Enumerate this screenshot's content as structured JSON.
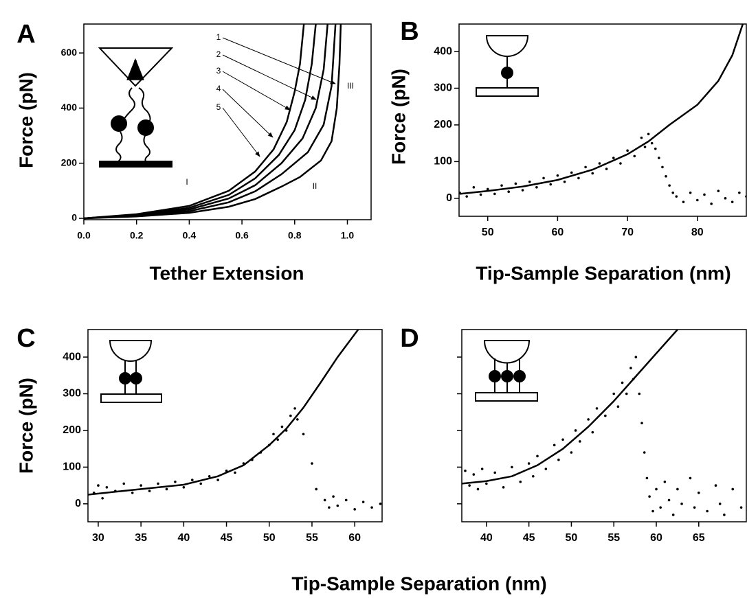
{
  "xlabel": "Tip-Sample Separation (nm)",
  "chart_data": [
    {
      "type": "line",
      "panel_label": "A",
      "ylabel": "Force (pN)",
      "xlabel": "Tether Extension",
      "xlim": [
        0,
        1.09
      ],
      "ylim": [
        -5,
        705
      ],
      "xticks": [
        {
          "value": 0,
          "label": "0.0"
        },
        0.2,
        0.4,
        0.6,
        0.8,
        {
          "value": 1,
          "label": "1.0"
        }
      ],
      "yticks": [
        0,
        200,
        400,
        600
      ],
      "annotations": [
        "1",
        "2",
        "3",
        "4",
        "5",
        "I",
        "II",
        "III"
      ],
      "series": [
        {
          "type": "line",
          "color": "#000000",
          "x": [
            0,
            0.2,
            0.4,
            0.55,
            0.65,
            0.72,
            0.77,
            0.8,
            0.82,
            0.835
          ],
          "values": [
            0,
            15,
            45,
            100,
            170,
            250,
            350,
            460,
            560,
            705
          ]
        },
        {
          "type": "line",
          "color": "#000000",
          "x": [
            0,
            0.2,
            0.4,
            0.55,
            0.65,
            0.74,
            0.8,
            0.84,
            0.865,
            0.88
          ],
          "values": [
            0,
            13,
            38,
            85,
            145,
            230,
            320,
            430,
            560,
            705
          ]
        },
        {
          "type": "line",
          "color": "#000000",
          "x": [
            0,
            0.2,
            0.4,
            0.55,
            0.65,
            0.75,
            0.83,
            0.88,
            0.91,
            0.925
          ],
          "values": [
            0,
            11,
            32,
            72,
            120,
            200,
            290,
            400,
            540,
            705
          ]
        },
        {
          "type": "line",
          "color": "#000000",
          "x": [
            0,
            0.2,
            0.4,
            0.55,
            0.65,
            0.75,
            0.85,
            0.91,
            0.94,
            0.955
          ],
          "values": [
            0,
            9,
            26,
            58,
            98,
            160,
            240,
            340,
            480,
            705
          ]
        },
        {
          "type": "line",
          "color": "#000000",
          "x": [
            0,
            0.2,
            0.4,
            0.55,
            0.65,
            0.75,
            0.82,
            0.9,
            0.94,
            0.96,
            0.97,
            0.975
          ],
          "values": [
            0,
            7,
            20,
            42,
            70,
            115,
            150,
            210,
            280,
            400,
            560,
            705
          ]
        }
      ]
    },
    {
      "type": "scatter",
      "panel_label": "B",
      "ylabel": "Force (pN)",
      "xlabel": "Tip-Sample Separation (nm)",
      "xlim": [
        45.9,
        87
      ],
      "ylim": [
        -49,
        475
      ],
      "xticks": [
        50,
        60,
        70,
        80
      ],
      "yticks": [
        0,
        100,
        200,
        300,
        400
      ],
      "series": [
        {
          "type": "line",
          "color": "#000000",
          "x": [
            46,
            50,
            55,
            60,
            65,
            70,
            73,
            76,
            80,
            83,
            85,
            86.5
          ],
          "values": [
            12,
            20,
            32,
            50,
            78,
            120,
            155,
            200,
            255,
            320,
            390,
            475
          ]
        },
        {
          "type": "scatter",
          "color": "#000000",
          "x": [
            46,
            47,
            48,
            49,
            50,
            51,
            52,
            53,
            54,
            55,
            56,
            57,
            58,
            59,
            60,
            61,
            62,
            63,
            64,
            65,
            66,
            67,
            68,
            69,
            70,
            71,
            72,
            72.5,
            73,
            73.5,
            74,
            74.5,
            75,
            75.5,
            76,
            76.5,
            77,
            78,
            79,
            80,
            81,
            82,
            83,
            84,
            85,
            86,
            87
          ],
          "values": [
            15,
            5,
            30,
            10,
            25,
            12,
            35,
            18,
            40,
            22,
            45,
            30,
            55,
            38,
            62,
            45,
            70,
            55,
            85,
            68,
            95,
            80,
            110,
            95,
            130,
            115,
            165,
            140,
            175,
            150,
            135,
            110,
            85,
            60,
            35,
            15,
            5,
            -10,
            15,
            -5,
            10,
            -15,
            20,
            0,
            -10,
            15,
            5
          ]
        }
      ]
    },
    {
      "type": "scatter",
      "panel_label": "C",
      "ylabel": "Force (pN)",
      "xlim": [
        28.8,
        63.2
      ],
      "ylim": [
        -49,
        475
      ],
      "xticks": [
        30,
        35,
        40,
        45,
        50,
        55,
        60
      ],
      "yticks": [
        0,
        100,
        200,
        300,
        400
      ],
      "series": [
        {
          "type": "line",
          "color": "#000000",
          "x": [
            28.8,
            32,
            35,
            40,
            44,
            47,
            50,
            52,
            54,
            56,
            58,
            60.4
          ],
          "values": [
            25,
            33,
            40,
            52,
            75,
            105,
            160,
            205,
            262,
            330,
            400,
            475
          ]
        },
        {
          "type": "scatter",
          "color": "#000000",
          "x": [
            29.5,
            30,
            30.5,
            31,
            32,
            33,
            34,
            35,
            36,
            37,
            38,
            39,
            40,
            41,
            42,
            43,
            44,
            45,
            46,
            47,
            48,
            49,
            50,
            50.5,
            51,
            51.5,
            52,
            52.5,
            53,
            53.3,
            54,
            55,
            55.5,
            56.5,
            57,
            57.5,
            58,
            59,
            60,
            61,
            62,
            63
          ],
          "values": [
            30,
            50,
            15,
            45,
            35,
            55,
            30,
            50,
            35,
            55,
            40,
            60,
            45,
            65,
            55,
            75,
            65,
            90,
            85,
            110,
            120,
            140,
            160,
            190,
            175,
            210,
            200,
            240,
            260,
            230,
            190,
            110,
            40,
            10,
            -10,
            20,
            -5,
            10,
            -15,
            5,
            -10,
            0
          ]
        }
      ]
    },
    {
      "type": "scatter",
      "panel_label": "D",
      "ytick_labels": false,
      "xlim": [
        37.1,
        70.6
      ],
      "ylim": [
        -49,
        475
      ],
      "xticks": [
        40,
        45,
        50,
        55,
        60,
        65
      ],
      "yticks": [
        0,
        100,
        200,
        300,
        400
      ],
      "series": [
        {
          "type": "line",
          "color": "#000000",
          "x": [
            37.1,
            40,
            43,
            46,
            49,
            52,
            55,
            57.5,
            60,
            62.5
          ],
          "values": [
            55,
            62,
            75,
            105,
            150,
            210,
            280,
            345,
            410,
            475
          ]
        },
        {
          "type": "scatter",
          "color": "#000000",
          "x": [
            37.5,
            38,
            38.5,
            39,
            39.5,
            40,
            41,
            42,
            43,
            44,
            45,
            45.5,
            46,
            47,
            48,
            48.5,
            49,
            50,
            50.5,
            51,
            52,
            52.5,
            53,
            54,
            55,
            55.5,
            56,
            56.5,
            57,
            57.3,
            57.6,
            58,
            58.3,
            58.6,
            58.9,
            59.2,
            59.6,
            60,
            60.5,
            61,
            61.5,
            62,
            62.5,
            63,
            64,
            64.5,
            65,
            66,
            67,
            67.5,
            68,
            69,
            70
          ],
          "values": [
            90,
            50,
            80,
            40,
            95,
            55,
            85,
            45,
            100,
            60,
            110,
            75,
            130,
            95,
            160,
            120,
            175,
            140,
            200,
            170,
            230,
            195,
            260,
            240,
            300,
            265,
            330,
            300,
            370,
            340,
            400,
            300,
            220,
            140,
            70,
            20,
            -20,
            40,
            -10,
            60,
            10,
            -30,
            40,
            0,
            70,
            -10,
            30,
            -20,
            50,
            0,
            -30,
            40,
            -10
          ]
        }
      ]
    }
  ]
}
